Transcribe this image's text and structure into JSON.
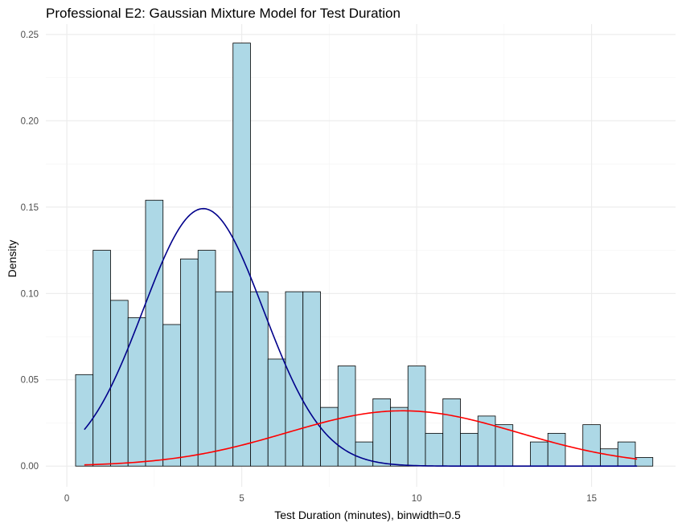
{
  "chart_data": {
    "type": "bar",
    "title": "Professional E2: Gaussian Mixture Model for Test Duration",
    "xlabel": "Test Duration (minutes), binwidth=0.5",
    "ylabel": "Density",
    "xlim": [
      -0.6,
      17.4
    ],
    "ylim": [
      -0.012,
      0.256
    ],
    "x_ticks": [
      0,
      5,
      10,
      15
    ],
    "x_tick_labels": [
      "0",
      "5",
      "10",
      "15"
    ],
    "y_ticks": [
      0.0,
      0.05,
      0.1,
      0.15,
      0.2,
      0.25
    ],
    "y_tick_labels": [
      "0.00",
      "0.05",
      "0.10",
      "0.15",
      "0.20",
      "0.25"
    ],
    "grid": true,
    "bin_width": 0.5,
    "bar_fill": "#add8e6",
    "bar_stroke": "#000000",
    "bins": [
      {
        "start": 0.25,
        "density": 0.053
      },
      {
        "start": 0.75,
        "density": 0.125
      },
      {
        "start": 1.25,
        "density": 0.096
      },
      {
        "start": 1.75,
        "density": 0.086
      },
      {
        "start": 2.25,
        "density": 0.154
      },
      {
        "start": 2.75,
        "density": 0.082
      },
      {
        "start": 3.25,
        "density": 0.12
      },
      {
        "start": 3.75,
        "density": 0.125
      },
      {
        "start": 4.25,
        "density": 0.101
      },
      {
        "start": 4.75,
        "density": 0.245
      },
      {
        "start": 5.25,
        "density": 0.101
      },
      {
        "start": 5.75,
        "density": 0.062
      },
      {
        "start": 6.25,
        "density": 0.101
      },
      {
        "start": 6.75,
        "density": 0.101
      },
      {
        "start": 7.25,
        "density": 0.034
      },
      {
        "start": 7.75,
        "density": 0.058
      },
      {
        "start": 8.25,
        "density": 0.014
      },
      {
        "start": 8.75,
        "density": 0.039
      },
      {
        "start": 9.25,
        "density": 0.034
      },
      {
        "start": 9.75,
        "density": 0.058
      },
      {
        "start": 10.25,
        "density": 0.019
      },
      {
        "start": 10.75,
        "density": 0.039
      },
      {
        "start": 11.25,
        "density": 0.019
      },
      {
        "start": 11.75,
        "density": 0.029
      },
      {
        "start": 12.25,
        "density": 0.024
      },
      {
        "start": 12.75,
        "density": 0.0
      },
      {
        "start": 13.25,
        "density": 0.014
      },
      {
        "start": 13.75,
        "density": 0.019
      },
      {
        "start": 14.25,
        "density": 0.0
      },
      {
        "start": 14.75,
        "density": 0.024
      },
      {
        "start": 15.25,
        "density": 0.01
      },
      {
        "start": 15.75,
        "density": 0.014
      },
      {
        "start": 16.25,
        "density": 0.005
      }
    ],
    "components": [
      {
        "color": "#00008b",
        "mean": 3.9,
        "sd": 1.72,
        "weight": 0.643,
        "x_range": [
          0.5,
          16.3
        ]
      },
      {
        "color": "#ff0000",
        "mean": 9.6,
        "sd": 3.3,
        "weight": 0.265,
        "x_range": [
          0.5,
          16.3
        ]
      }
    ]
  }
}
